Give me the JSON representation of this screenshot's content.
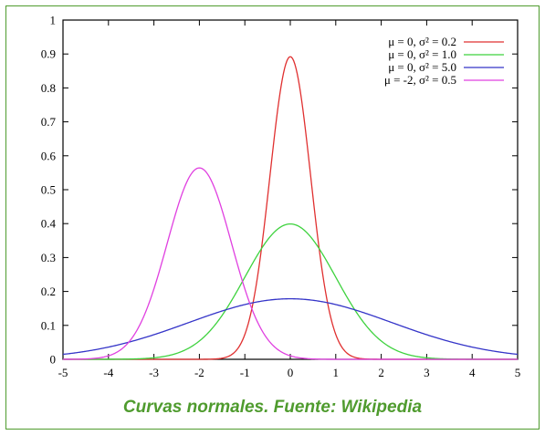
{
  "chart_data": {
    "type": "line",
    "title": "",
    "xlabel": "",
    "ylabel": "",
    "xlim": [
      -5,
      5
    ],
    "ylim": [
      0,
      1
    ],
    "grid": false,
    "legend_position": "top-right",
    "x_ticks": [
      "-5",
      "-4",
      "-3",
      "-2",
      "-1",
      "0",
      "1",
      "2",
      "3",
      "4",
      "5"
    ],
    "y_ticks": [
      "0",
      "0.1",
      "0.2",
      "0.3",
      "0.4",
      "0.5",
      "0.6",
      "0.7",
      "0.8",
      "0.9",
      "1"
    ],
    "series": [
      {
        "name": "μ = 0, σ² = 0.2",
        "mu": 0,
        "variance": 0.2,
        "color": "#e03030",
        "x": [
          -5,
          -4,
          -3,
          -2,
          -1.5,
          -1,
          -0.5,
          0,
          0.5,
          1,
          1.5,
          2,
          3,
          4,
          5
        ],
        "y": [
          0.0,
          0.0,
          0.0,
          0.0,
          0.003,
          0.073,
          0.477,
          0.892,
          0.477,
          0.073,
          0.003,
          0.0,
          0.0,
          0.0,
          0.0
        ]
      },
      {
        "name": "μ = 0, σ² = 1.0",
        "mu": 0,
        "variance": 1.0,
        "color": "#3ed23e",
        "x": [
          -5,
          -4,
          -3,
          -2,
          -1,
          -0.5,
          0,
          0.5,
          1,
          2,
          3,
          4,
          5
        ],
        "y": [
          0.0,
          0.0,
          0.004,
          0.054,
          0.242,
          0.352,
          0.399,
          0.352,
          0.242,
          0.054,
          0.004,
          0.0,
          0.0
        ]
      },
      {
        "name": "μ = 0, σ² = 5.0",
        "mu": 0,
        "variance": 5.0,
        "color": "#3434c8",
        "x": [
          -5,
          -4,
          -3,
          -2,
          -1,
          0,
          1,
          2,
          3,
          4,
          5
        ],
        "y": [
          0.015,
          0.036,
          0.072,
          0.12,
          0.161,
          0.178,
          0.161,
          0.12,
          0.072,
          0.036,
          0.015
        ]
      },
      {
        "name": "μ = -2, σ² = 0.5",
        "mu": -2,
        "variance": 0.5,
        "color": "#e040e0",
        "x": [
          -5,
          -4,
          -3,
          -2.5,
          -2,
          -1.5,
          -1,
          0,
          1
        ],
        "y": [
          0.0,
          0.01,
          0.208,
          0.439,
          0.564,
          0.439,
          0.208,
          0.01,
          0.0
        ]
      }
    ]
  },
  "caption": "Curvas normales. Fuente: Wikipedia"
}
